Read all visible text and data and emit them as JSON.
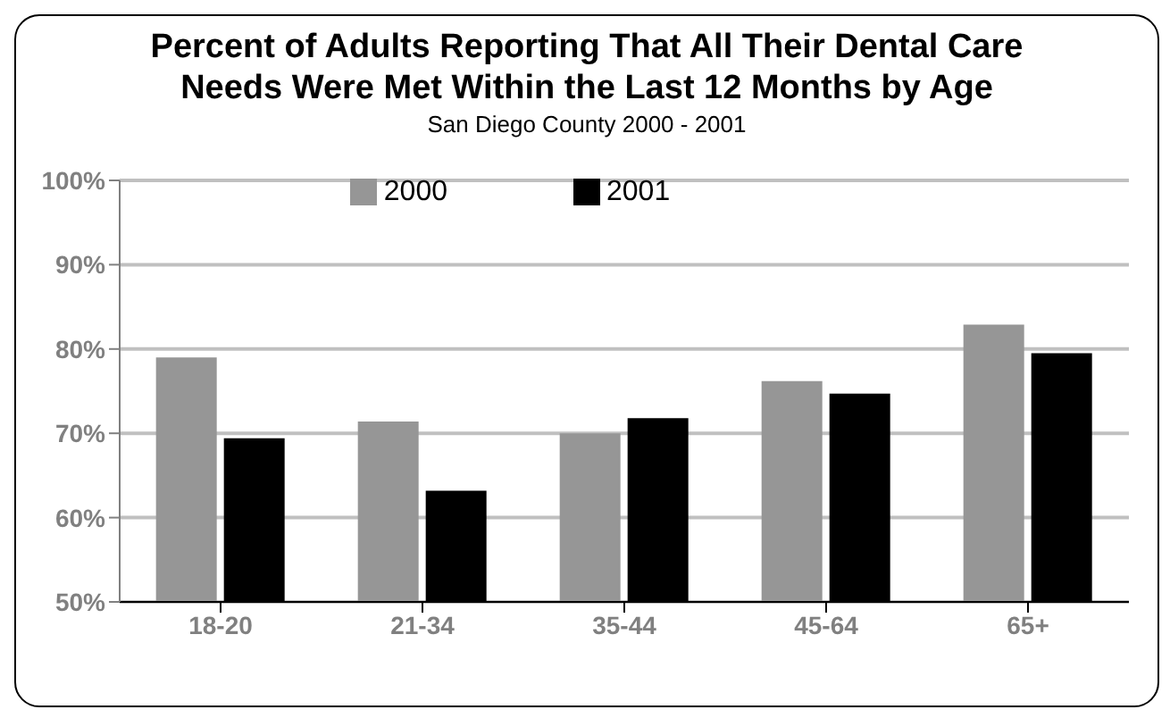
{
  "chart_data": {
    "type": "bar",
    "title": "Percent of Adults Reporting That All Their Dental Care Needs Were Met Within the Last 12 Months by Age",
    "subtitle": "San Diego County 2000 - 2001",
    "categories": [
      "18-20",
      "21-34",
      "35-44",
      "45-64",
      "65+"
    ],
    "series": [
      {
        "name": "2000",
        "color": "#969696",
        "values": [
          79.0,
          71.4,
          70.0,
          76.2,
          82.9
        ]
      },
      {
        "name": "2001",
        "color": "#000000",
        "values": [
          69.4,
          63.2,
          71.8,
          74.7,
          79.5
        ]
      }
    ],
    "ylim": [
      50,
      100
    ],
    "yticks": [
      {
        "value": 50,
        "label": "50%"
      },
      {
        "value": 60,
        "label": "60%"
      },
      {
        "value": 70,
        "label": "70%"
      },
      {
        "value": 80,
        "label": "80%"
      },
      {
        "value": 90,
        "label": "90%"
      },
      {
        "value": 100,
        "label": "100%"
      }
    ],
    "grid": "y",
    "legend": "top"
  }
}
